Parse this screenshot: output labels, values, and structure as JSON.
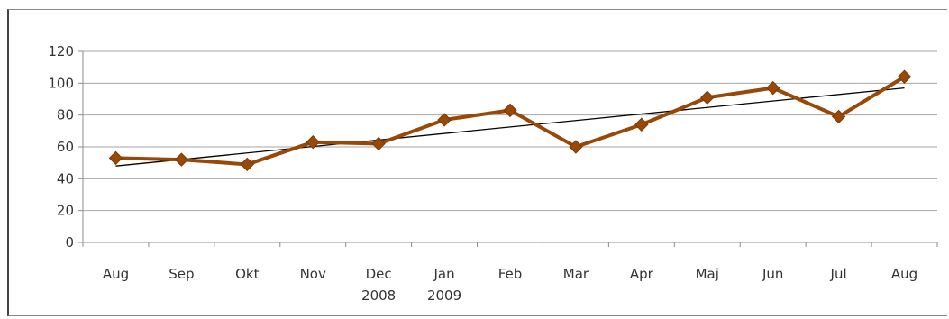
{
  "chart_data": {
    "type": "line",
    "title": "",
    "xlabel": "",
    "ylabel": "",
    "ylim": [
      0,
      120
    ],
    "yticks": [
      0,
      20,
      40,
      60,
      80,
      100,
      120
    ],
    "grid": true,
    "legend": "none",
    "categories": [
      [
        "Aug"
      ],
      [
        "Sep"
      ],
      [
        "Okt"
      ],
      [
        "Nov"
      ],
      [
        "Dec",
        "2008"
      ],
      [
        "Jan",
        "2009"
      ],
      [
        "Feb"
      ],
      [
        "Mar"
      ],
      [
        "Apr"
      ],
      [
        "Maj"
      ],
      [
        "Jun"
      ],
      [
        "Jul"
      ],
      [
        "Aug"
      ]
    ],
    "series": [
      {
        "values": [
          53,
          52,
          49,
          63,
          62,
          77,
          83,
          60,
          74,
          91,
          97,
          79,
          104
        ],
        "color": "#984807"
      }
    ],
    "trendline": {
      "start": 48,
      "end": 97,
      "color": "#000000"
    }
  }
}
